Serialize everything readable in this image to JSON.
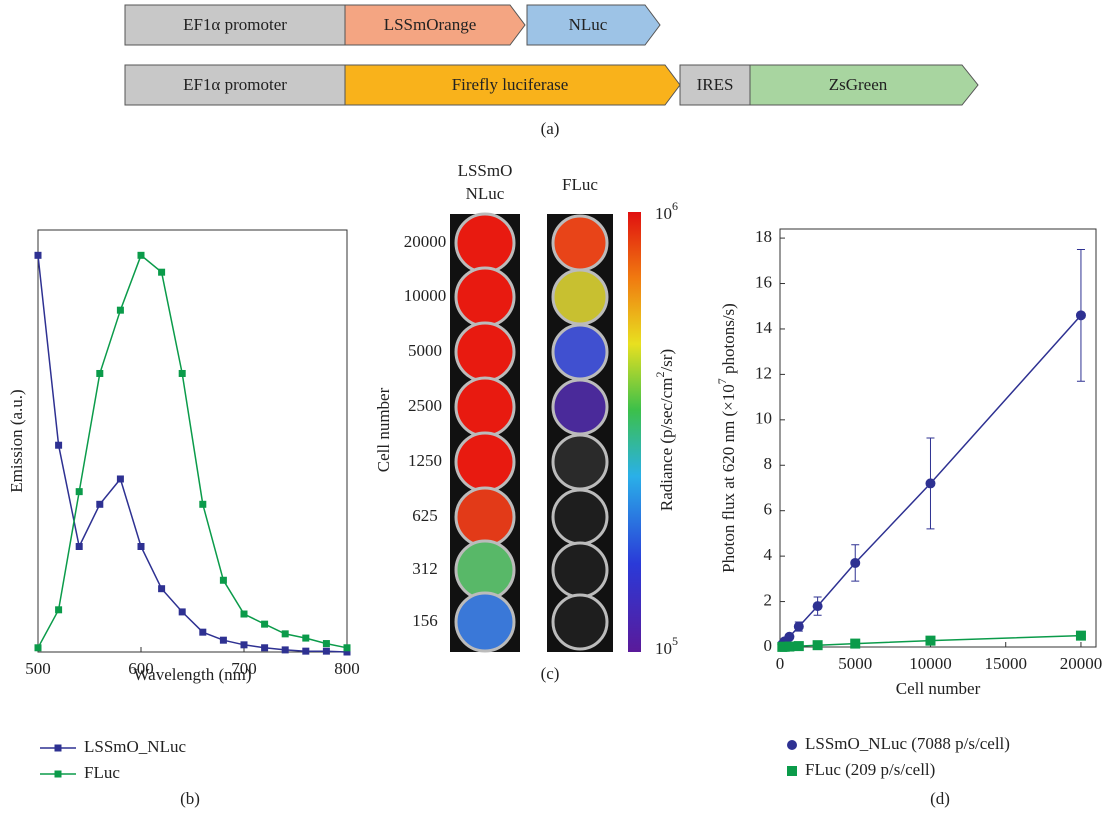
{
  "construct": {
    "rows": [
      {
        "parts": [
          "EF1α promoter",
          "LSSmOrange",
          "NLuc"
        ]
      },
      {
        "parts": [
          "EF1α promoter",
          "Firefly luciferase",
          "IRES",
          "ZsGreen"
        ]
      }
    ],
    "panel_label": "(a)"
  },
  "imaging": {
    "column_titles": [
      "LSSmO",
      "NLuc",
      "FLuc"
    ],
    "row_labels": [
      "20000",
      "10000",
      "5000",
      "2500",
      "1250",
      "625",
      "312",
      "156"
    ],
    "y_label": "Cell number",
    "colorbar_top": [
      "10",
      "6"
    ],
    "colorbar_bottom": [
      "10",
      "5"
    ],
    "colorbar_label": [
      "Radiance (p/sec/cm",
      "2",
      "/sr)"
    ],
    "panel_label": "(c)"
  },
  "chart_data": [
    {
      "type": "line",
      "panel_label": "(b)",
      "x_label": "Wavelength (nm)",
      "y_label": "Emission (a.u.)",
      "x": [
        500,
        520,
        540,
        560,
        580,
        600,
        620,
        640,
        660,
        680,
        700,
        720,
        740,
        760,
        780,
        800
      ],
      "xlim": [
        500,
        800
      ],
      "xticks": [
        500,
        600,
        700,
        800
      ],
      "ylim": [
        0,
        1
      ],
      "series": [
        {
          "name": "LSSmO_NLuc",
          "color": "#2e3192",
          "values": [
            0.94,
            0.49,
            0.25,
            0.35,
            0.41,
            0.25,
            0.15,
            0.095,
            0.047,
            0.028,
            0.017,
            0.01,
            0.005,
            0.002,
            0.002,
            0
          ]
        },
        {
          "name": "FLuc",
          "color": "#0b9b4a",
          "values": [
            0.01,
            0.1,
            0.38,
            0.66,
            0.81,
            0.94,
            0.9,
            0.66,
            0.35,
            0.17,
            0.09,
            0.066,
            0.043,
            0.033,
            0.02,
            0.01
          ]
        }
      ]
    },
    {
      "type": "scatter",
      "panel_label": "(d)",
      "x_label": "Cell number",
      "y_label": [
        "Photon flux at 620 nm (×10",
        "7",
        " photons/s)"
      ],
      "x": [
        156,
        312,
        625,
        1250,
        2500,
        5000,
        10000,
        20000
      ],
      "xlim": [
        0,
        21000
      ],
      "xticks": [
        0,
        5000,
        10000,
        15000,
        20000
      ],
      "ylim": [
        0,
        18.4
      ],
      "yticks": [
        0,
        2,
        4,
        6,
        8,
        10,
        12,
        14,
        16,
        18
      ],
      "series": [
        {
          "name": "LSSmO_NLuc (7088 p/s/cell)",
          "color": "#2e3192",
          "marker": "circle",
          "values": [
            0.12,
            0.25,
            0.45,
            0.9,
            1.8,
            3.7,
            7.2,
            14.6
          ],
          "errors": [
            0.05,
            0.08,
            0.1,
            0.2,
            0.4,
            0.8,
            2.0,
            2.9
          ]
        },
        {
          "name": "FLuc (209 p/s/cell)",
          "color": "#0b9b4a",
          "marker": "square",
          "values": [
            0.005,
            0.01,
            0.02,
            0.04,
            0.08,
            0.15,
            0.28,
            0.5
          ]
        }
      ]
    }
  ]
}
